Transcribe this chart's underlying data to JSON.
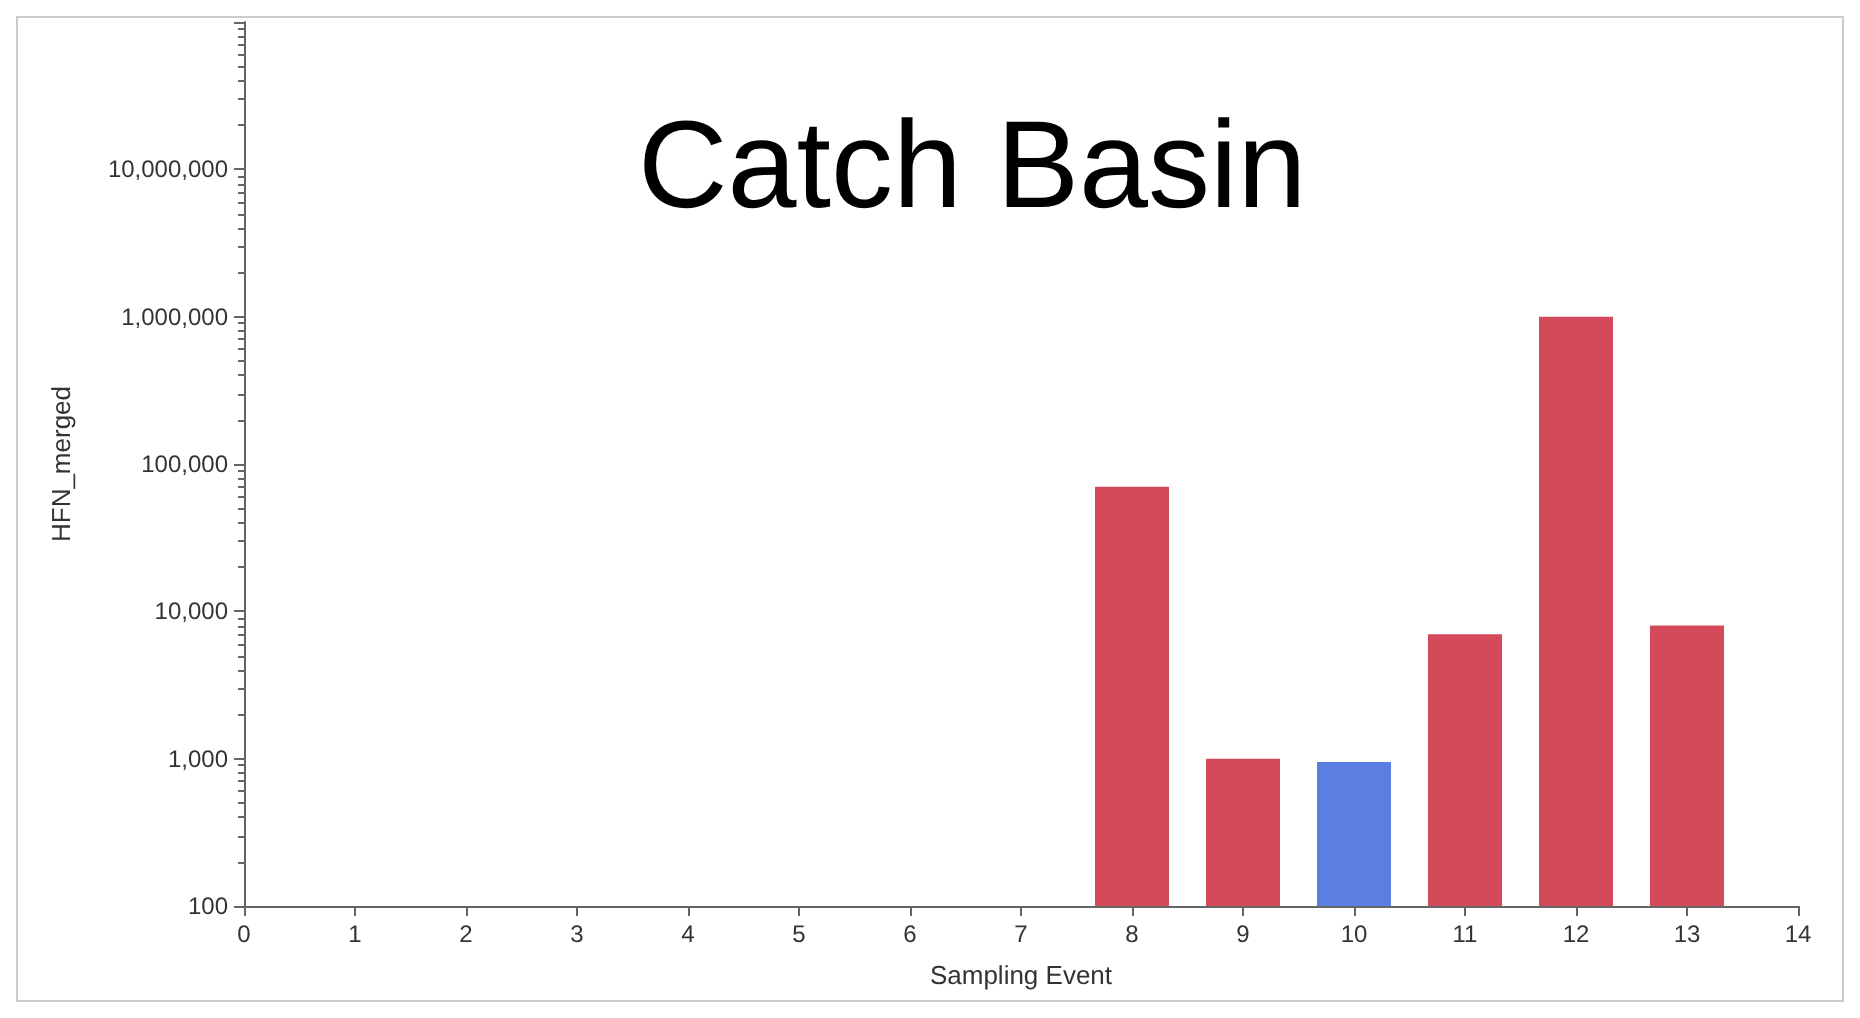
{
  "chart_data": {
    "type": "bar",
    "title": "Catch Basin",
    "xlabel": "Sampling Event",
    "ylabel": "HFN_merged",
    "x": [
      8,
      9,
      10,
      11,
      12,
      13
    ],
    "values": [
      70000,
      1000,
      950,
      7000,
      1000000,
      8000
    ],
    "colors": [
      "#d44a5a",
      "#d44a5a",
      "#5a7fe0",
      "#d44a5a",
      "#d44a5a",
      "#d44a5a"
    ],
    "xlim": [
      0,
      14
    ],
    "xticks": [
      0,
      1,
      2,
      3,
      4,
      5,
      6,
      7,
      8,
      9,
      10,
      11,
      12,
      13,
      14
    ],
    "ylim": [
      100,
      100000000
    ],
    "yticks": [
      100,
      {
        "value": 1000,
        "label": "1,000"
      },
      {
        "value": 10000,
        "label": "10,000"
      },
      {
        "value": 100000,
        "label": "100,000"
      },
      {
        "value": 1000000,
        "label": "1,000,000"
      },
      {
        "value": 10000000,
        "label": "10,000,000"
      }
    ],
    "log": "y",
    "grid": false
  }
}
